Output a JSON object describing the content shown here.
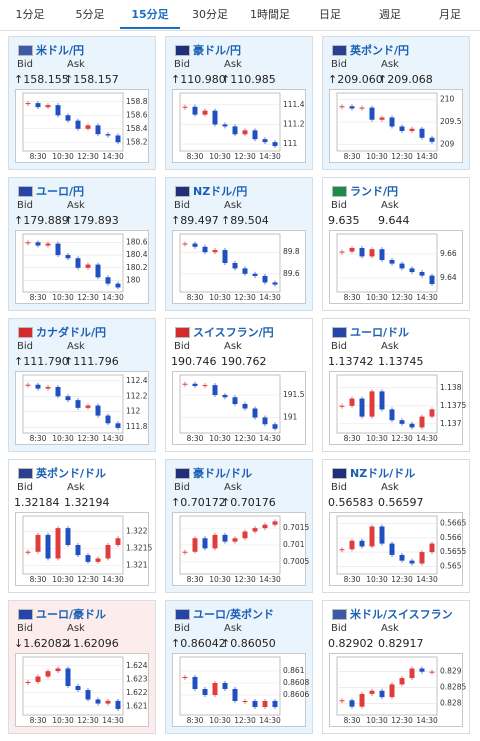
{
  "tabs": [
    "1分足",
    "5分足",
    "15分足",
    "30分足",
    "1時間足",
    "日足",
    "週足",
    "月足"
  ],
  "active_tab": 2,
  "bid_label": "Bid",
  "ask_label": "Ask",
  "x_labels": [
    "8:30",
    "10:30",
    "12:30",
    "14:30"
  ],
  "panels": [
    {
      "title": "米ドル/円",
      "bid": "↑158.155",
      "ask": "↑158.157",
      "bg": "#eaf4fc",
      "flag_color": "#3c5aa8",
      "ylim": [
        158.1,
        158.9
      ],
      "yticks": [
        158.2,
        158.4,
        158.6,
        158.8
      ],
      "closes": [
        158.78,
        158.72,
        158.75,
        158.6,
        158.52,
        158.4,
        158.45,
        158.32,
        158.3,
        158.2
      ]
    },
    {
      "title": "豪ドル/円",
      "bid": "↑110.980",
      "ask": "↑110.985",
      "bg": "#eaf4fc",
      "flag_color": "#1f2f7a",
      "ylim": [
        110.95,
        111.5
      ],
      "yticks": [
        111,
        111.2,
        111.4
      ],
      "closes": [
        111.38,
        111.3,
        111.34,
        111.2,
        111.18,
        111.1,
        111.14,
        111.05,
        111.02,
        110.98
      ]
    },
    {
      "title": "英ポンド/円",
      "bid": "↑209.060",
      "ask": "↑209.068",
      "bg": "#eaf4fc",
      "flag_color": "#2a3f8f",
      "ylim": [
        208.9,
        210.1
      ],
      "yticks": [
        209,
        209.5,
        210
      ],
      "closes": [
        209.85,
        209.8,
        209.82,
        209.55,
        209.6,
        209.4,
        209.3,
        209.35,
        209.15,
        209.06
      ]
    },
    {
      "title": "ユーロ/円",
      "bid": "↑179.889",
      "ask": "↑179.893",
      "bg": "#eaf4fc",
      "flag_color": "#2546a8",
      "ylim": [
        179.85,
        180.7
      ],
      "yticks": [
        180,
        180.2,
        180.4,
        180.6
      ],
      "closes": [
        180.6,
        180.55,
        180.58,
        180.4,
        180.35,
        180.2,
        180.25,
        180.05,
        179.95,
        179.89
      ]
    },
    {
      "title": "NZドル/円",
      "bid": "↑89.497",
      "ask": "↑89.504",
      "bg": "#eaf4fc",
      "flag_color": "#1f2f7a",
      "ylim": [
        89.45,
        89.95
      ],
      "yticks": [
        89.6,
        89.8
      ],
      "closes": [
        89.88,
        89.85,
        89.8,
        89.82,
        89.7,
        89.65,
        89.6,
        89.58,
        89.52,
        89.5
      ]
    },
    {
      "title": "ランド/円",
      "bid": "9.635",
      "ask": "9.644",
      "bg": "#ffffff",
      "flag_color": "#1e8a4a",
      "ylim": [
        9.63,
        9.675
      ],
      "yticks": [
        9.64,
        9.66
      ],
      "closes": [
        9.662,
        9.665,
        9.658,
        9.664,
        9.655,
        9.652,
        9.648,
        9.645,
        9.642,
        9.635
      ]
    },
    {
      "title": "カナダドル/円",
      "bid": "↑111.790",
      "ask": "↑111.796",
      "bg": "#eaf4fc",
      "flag_color": "#d42a2a",
      "ylim": [
        111.75,
        112.45
      ],
      "yticks": [
        111.8,
        112,
        112.2,
        112.4
      ],
      "closes": [
        112.35,
        112.3,
        112.32,
        112.2,
        112.15,
        112.05,
        112.08,
        111.95,
        111.85,
        111.79
      ]
    },
    {
      "title": "スイスフラン/円",
      "bid": "190.746",
      "ask": "190.762",
      "bg": "#ffffff",
      "flag_color": "#d42a2a",
      "ylim": [
        190.7,
        191.9
      ],
      "yticks": [
        191,
        191.5
      ],
      "closes": [
        191.75,
        191.7,
        191.72,
        191.5,
        191.45,
        191.3,
        191.2,
        191.0,
        190.85,
        190.75
      ]
    },
    {
      "title": "ユーロ/ドル",
      "bid": "1.13742",
      "ask": "1.13745",
      "bg": "#ffffff",
      "flag_color": "#2546a8",
      "ylim": [
        1.1368,
        1.1383
      ],
      "yticks": [
        1.137,
        1.1375,
        1.138
      ],
      "closes": [
        1.1375,
        1.1377,
        1.1372,
        1.1379,
        1.1374,
        1.1371,
        1.137,
        1.1369,
        1.1372,
        1.1374
      ]
    },
    {
      "title": "英ポンド/ドル",
      "bid": "1.32184",
      "ask": "1.32194",
      "bg": "#ffffff",
      "flag_color": "#2a3f8f",
      "ylim": [
        1.3208,
        1.3224
      ],
      "yticks": [
        1.321,
        1.3215,
        1.322
      ],
      "closes": [
        1.3214,
        1.3219,
        1.3212,
        1.3221,
        1.3216,
        1.3213,
        1.3211,
        1.3212,
        1.3216,
        1.3218
      ]
    },
    {
      "title": "豪ドル/ドル",
      "bid": "↑0.70172",
      "ask": "↑0.70176",
      "bg": "#eaf4fc",
      "flag_color": "#1f2f7a",
      "ylim": [
        0.7002,
        0.7018
      ],
      "yticks": [
        0.7005,
        0.701,
        0.7015
      ],
      "closes": [
        0.7008,
        0.7012,
        0.7009,
        0.7013,
        0.7011,
        0.7012,
        0.7014,
        0.7015,
        0.7016,
        0.7017
      ]
    },
    {
      "title": "NZドル/ドル",
      "bid": "0.56583",
      "ask": "0.56597",
      "bg": "#ffffff",
      "flag_color": "#1f2f7a",
      "ylim": [
        0.5648,
        0.5667
      ],
      "yticks": [
        0.565,
        0.5655,
        0.566,
        0.5665
      ],
      "closes": [
        0.5656,
        0.5659,
        0.5657,
        0.5664,
        0.5658,
        0.5654,
        0.5652,
        0.5651,
        0.5655,
        0.5658
      ]
    },
    {
      "title": "ユーロ/豪ドル",
      "bid": "↓1.62082",
      "ask": "↓1.62096",
      "bg": "#fcecec",
      "flag_color": "#2546a8",
      "ylim": [
        1.6205,
        1.6245
      ],
      "yticks": [
        1.621,
        1.622,
        1.623,
        1.624
      ],
      "closes": [
        1.6228,
        1.6232,
        1.6236,
        1.6238,
        1.6225,
        1.6222,
        1.6215,
        1.6212,
        1.6214,
        1.6208
      ]
    },
    {
      "title": "ユーロ/英ポンド",
      "bid": "↑0.86042",
      "ask": "↑0.86050",
      "bg": "#eaf4fc",
      "flag_color": "#2546a8",
      "ylim": [
        0.8603,
        0.8612
      ],
      "yticks": [
        0.8606,
        0.8608,
        0.861
      ],
      "closes": [
        0.8609,
        0.8607,
        0.8606,
        0.8608,
        0.8607,
        0.8605,
        0.8605,
        0.8604,
        0.8605,
        0.8604
      ]
    },
    {
      "title": "米ドル/スイスフラン",
      "bid": "0.82902",
      "ask": "0.82917",
      "bg": "#ffffff",
      "flag_color": "#3c5aa8",
      "ylim": [
        0.8277,
        0.8294
      ],
      "yticks": [
        0.828,
        0.8285,
        0.829
      ],
      "closes": [
        0.8281,
        0.8279,
        0.8283,
        0.8284,
        0.8282,
        0.8286,
        0.8288,
        0.8291,
        0.829,
        0.829
      ]
    }
  ]
}
